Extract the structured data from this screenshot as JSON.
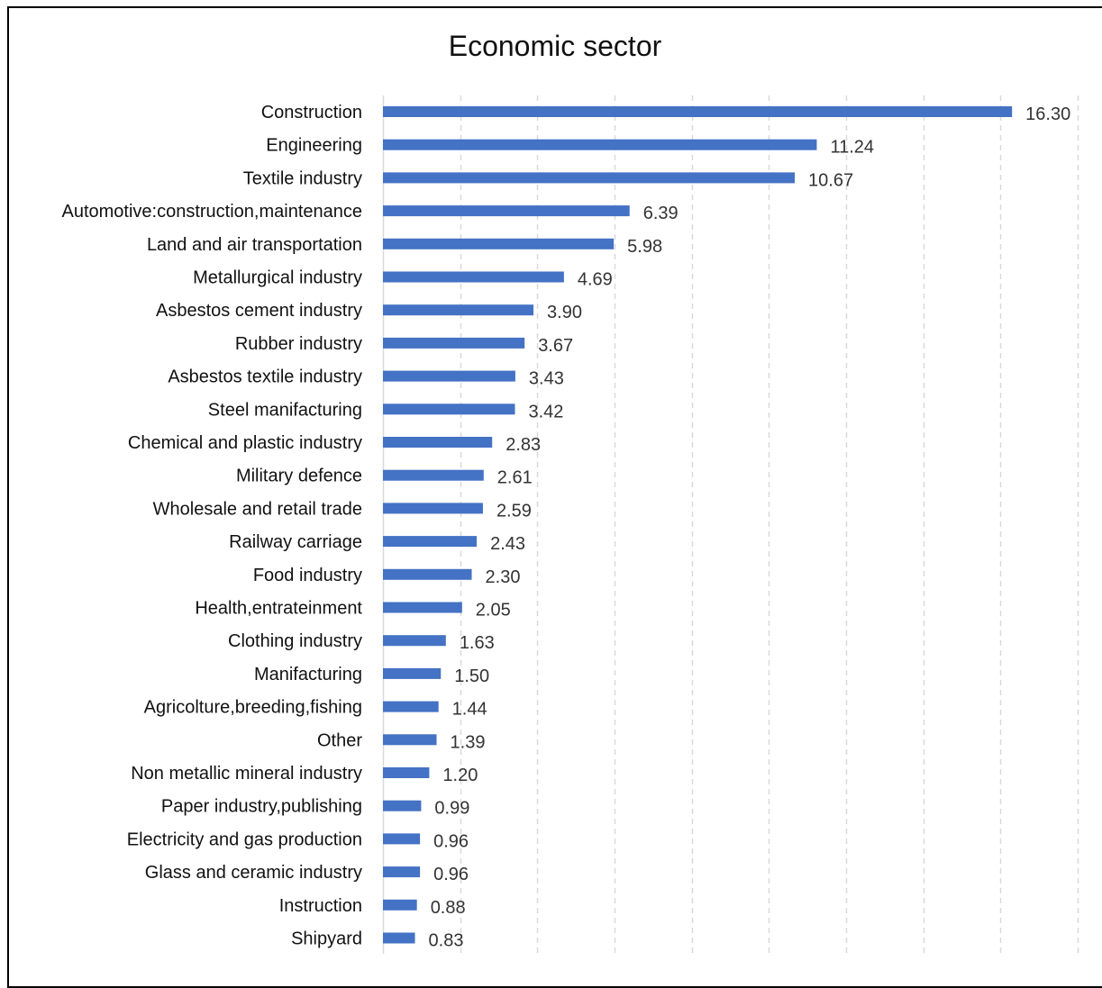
{
  "chart_data": {
    "type": "bar",
    "orientation": "horizontal",
    "title": "Economic sector",
    "xlabel": "",
    "ylabel": "",
    "xlim": [
      0,
      18
    ],
    "grid": "vertical dashed",
    "legend": "none",
    "bar_color": "#4472C4",
    "gridline_color": "#D9D9D9",
    "categories": [
      "Construction",
      "Engineering",
      "Textile industry",
      "Automotive:construction,maintenance",
      "Land and air transportation",
      "Metallurgical industry",
      "Asbestos cement industry",
      "Rubber industry",
      "Asbestos textile industry",
      "Steel manifacturing",
      "Chemical and plastic industry",
      "Military defence",
      "Wholesale and retail trade",
      "Railway carriage",
      "Food industry",
      "Health,entrateinment",
      "Clothing industry",
      "Manifacturing",
      "Agricolture,breeding,fishing",
      "Other",
      "Non metallic mineral industry",
      "Paper industry,publishing",
      "Electricity and gas production",
      "Glass and ceramic industry",
      "Instruction",
      "Shipyard"
    ],
    "values": [
      16.3,
      11.24,
      10.67,
      6.39,
      5.98,
      4.69,
      3.9,
      3.67,
      3.43,
      3.42,
      2.83,
      2.61,
      2.59,
      2.43,
      2.3,
      2.05,
      1.63,
      1.5,
      1.44,
      1.39,
      1.2,
      0.99,
      0.96,
      0.96,
      0.88,
      0.83
    ],
    "value_labels": [
      "16.30",
      "11.24",
      "10.67",
      "6.39",
      "5.98",
      "4.69",
      "3.90",
      "3.67",
      "3.43",
      "3.42",
      "2.83",
      "2.61",
      "2.59",
      "2.43",
      "2.30",
      "2.05",
      "1.63",
      "1.50",
      "1.44",
      "1.39",
      "1.20",
      "0.99",
      "0.96",
      "0.96",
      "0.88",
      "0.83"
    ]
  }
}
